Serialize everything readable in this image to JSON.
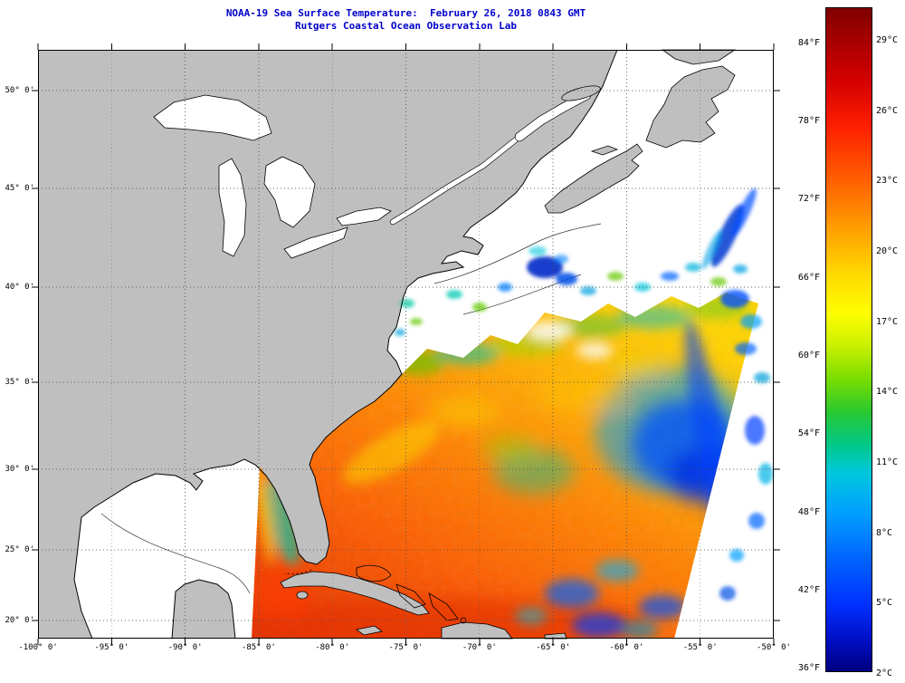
{
  "title": {
    "line1": "NOAA-19 Sea Surface Temperature:  February 26, 2018 0843 GMT",
    "line2": "Rutgers Coastal Ocean Observation Lab"
  },
  "axes": {
    "latitude_ticks": [
      {
        "label": "50° 0'",
        "value": 50
      },
      {
        "label": "45° 0'",
        "value": 45
      },
      {
        "label": "40° 0'",
        "value": 40
      },
      {
        "label": "35° 0'",
        "value": 35
      },
      {
        "label": "30° 0'",
        "value": 30
      },
      {
        "label": "25° 0'",
        "value": 25
      },
      {
        "label": "20° 0'",
        "value": 20
      }
    ],
    "longitude_ticks": [
      {
        "label": "-100° 0'",
        "value": -100
      },
      {
        "label": "-95° 0'",
        "value": -95
      },
      {
        "label": "-90° 0'",
        "value": -90
      },
      {
        "label": "-85° 0'",
        "value": -85
      },
      {
        "label": "-80° 0'",
        "value": -80
      },
      {
        "label": "-75° 0'",
        "value": -75
      },
      {
        "label": "-70° 0'",
        "value": -70
      },
      {
        "label": "-65° 0'",
        "value": -65
      },
      {
        "label": "-60° 0'",
        "value": -60
      },
      {
        "label": "-55° 0'",
        "value": -55
      },
      {
        "label": "-50° 0'",
        "value": -50
      }
    ]
  },
  "colorbar": {
    "fahrenheit_ticks": [
      {
        "label": "84°F",
        "value": 84
      },
      {
        "label": "78°F",
        "value": 78
      },
      {
        "label": "72°F",
        "value": 72
      },
      {
        "label": "66°F",
        "value": 66
      },
      {
        "label": "60°F",
        "value": 60
      },
      {
        "label": "54°F",
        "value": 54
      },
      {
        "label": "48°F",
        "value": 48
      },
      {
        "label": "42°F",
        "value": 42
      },
      {
        "label": "36°F",
        "value": 36
      }
    ],
    "celsius_ticks": [
      {
        "label": "29°C",
        "value": 29
      },
      {
        "label": "26°C",
        "value": 26
      },
      {
        "label": "23°C",
        "value": 23
      },
      {
        "label": "20°C",
        "value": 20
      },
      {
        "label": "17°C",
        "value": 17
      },
      {
        "label": "14°C",
        "value": 14
      },
      {
        "label": "11°C",
        "value": 11
      },
      {
        "label": "8°C",
        "value": 8
      },
      {
        "label": "5°C",
        "value": 5
      },
      {
        "label": "2°C",
        "value": 2
      }
    ]
  },
  "colors": {
    "title_text": "#0000cc",
    "land": "#bfbfbf",
    "ocean": "#ffffff",
    "coastline": "#000000",
    "colorbar_top": "#800000",
    "colorbar_bottom": "#000080"
  }
}
